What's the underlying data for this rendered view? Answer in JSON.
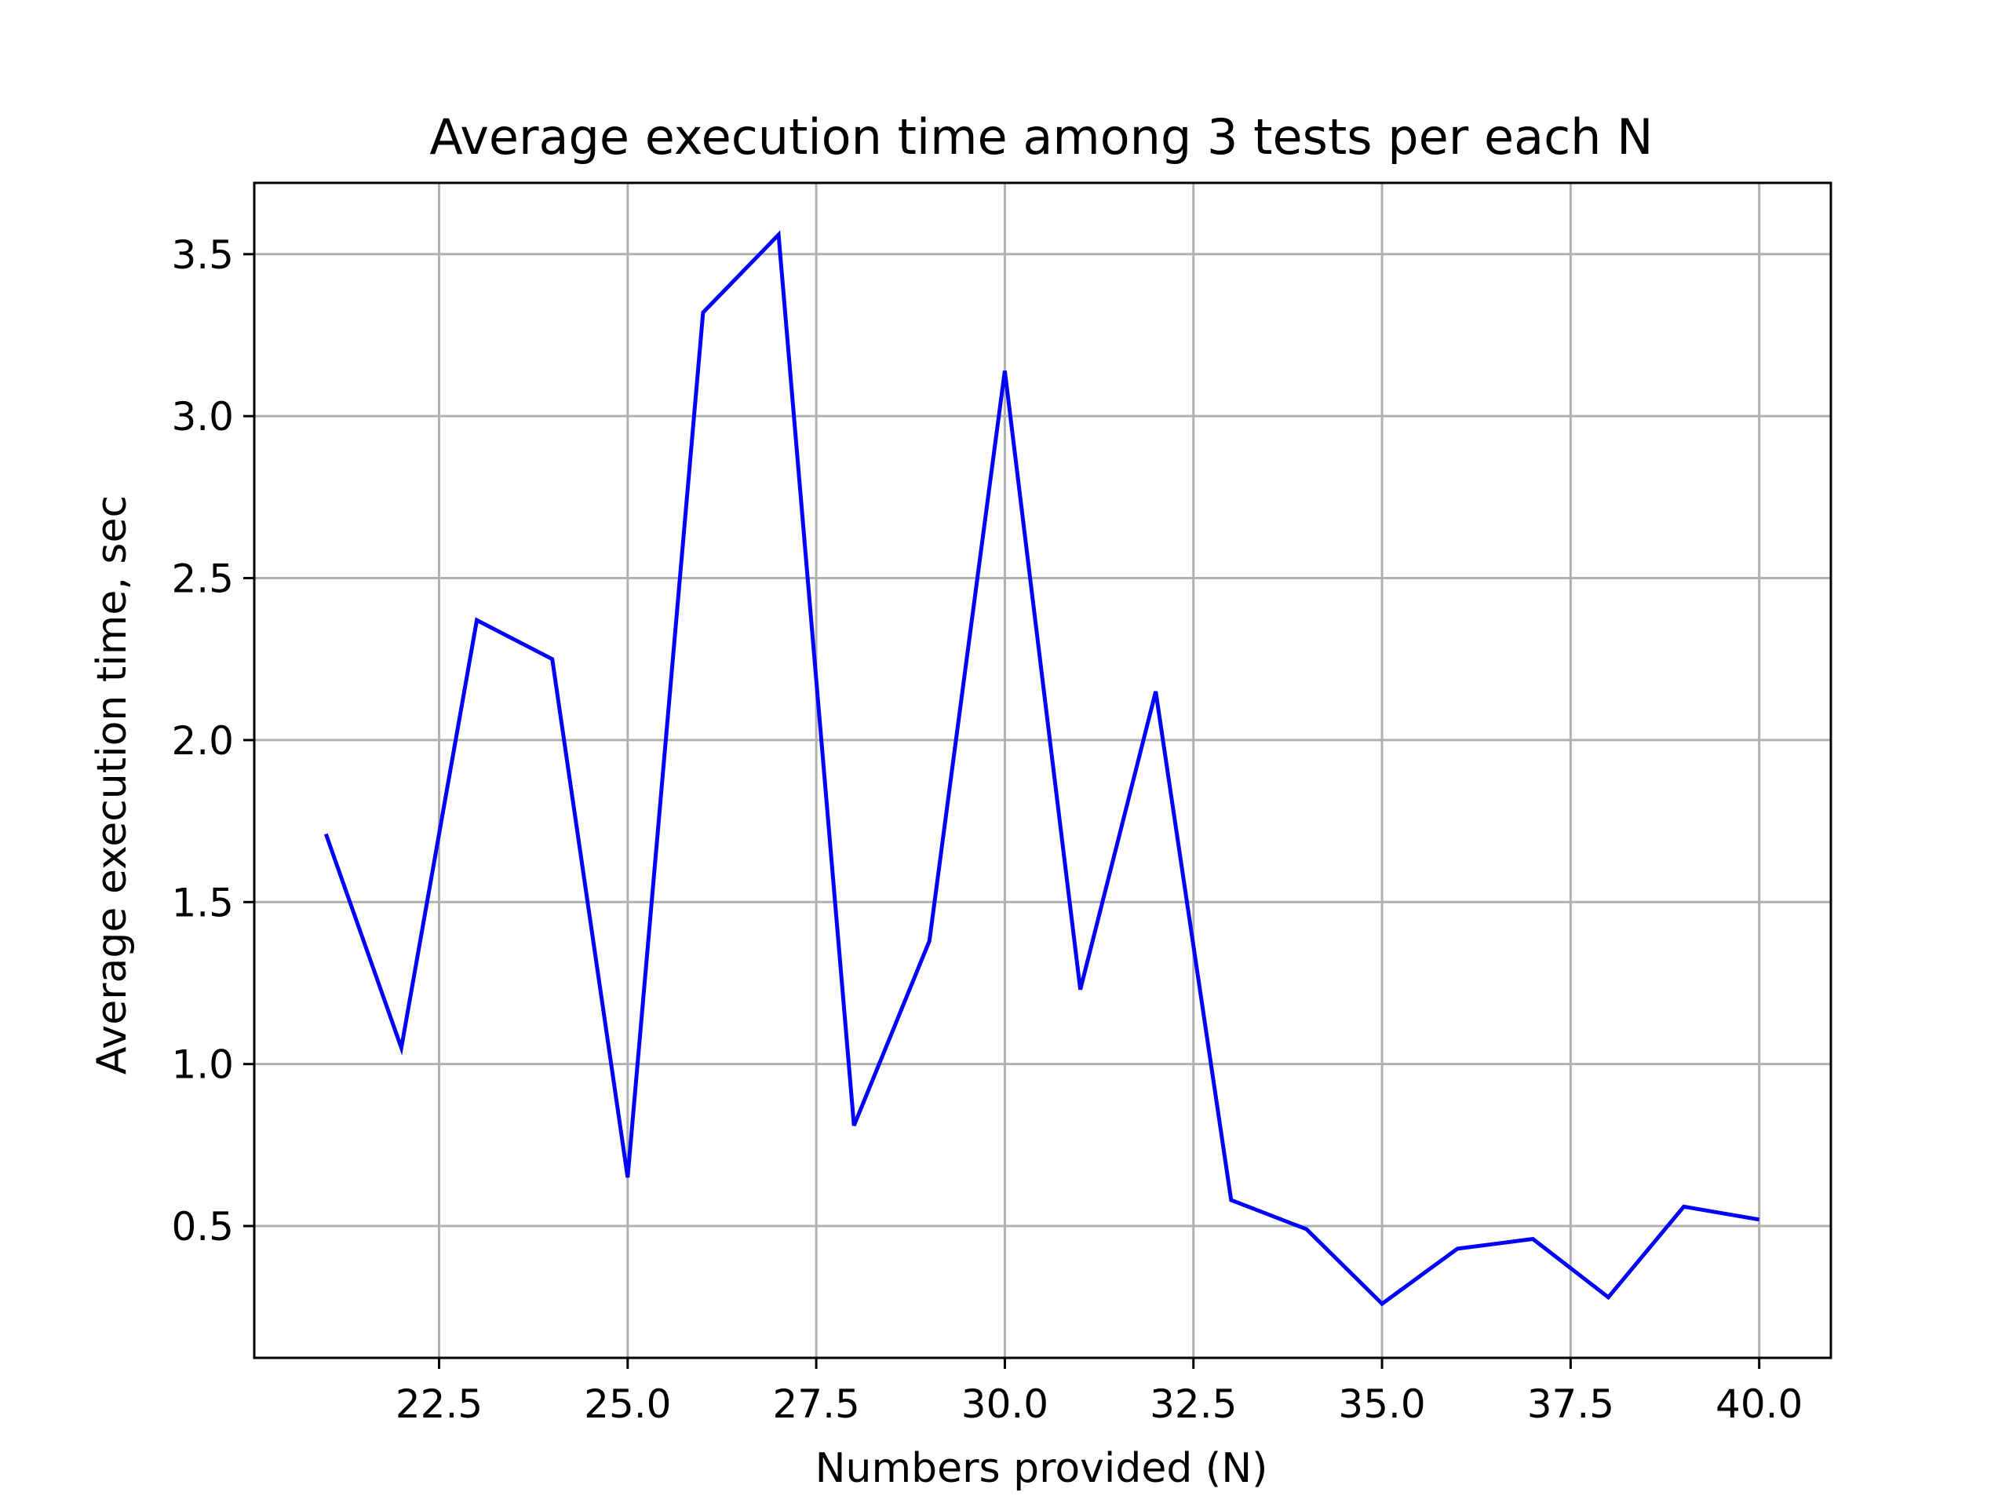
{
  "chart_data": {
    "type": "line",
    "title": "Average execution time among 3 tests per each N",
    "xlabel": "Numbers provided (N)",
    "ylabel": "Average execution time, sec",
    "xlim": [
      20.05,
      40.95
    ],
    "ylim": [
      0.093,
      3.72
    ],
    "grid": true,
    "x_ticks": [
      22.5,
      25.0,
      27.5,
      30.0,
      32.5,
      35.0,
      37.5,
      40.0
    ],
    "x_tick_labels": [
      "22.5",
      "25.0",
      "27.5",
      "30.0",
      "32.5",
      "35.0",
      "37.5",
      "40.0"
    ],
    "y_ticks": [
      0.5,
      1.0,
      1.5,
      2.0,
      2.5,
      3.0,
      3.5
    ],
    "y_tick_labels": [
      "0.5",
      "1.0",
      "1.5",
      "2.0",
      "2.5",
      "3.0",
      "3.5"
    ],
    "series": [
      {
        "color": "#0000ff",
        "x": [
          21,
          22,
          23,
          24,
          25,
          26,
          27,
          28,
          29,
          30,
          31,
          32,
          33,
          34,
          35,
          36,
          37,
          38,
          39,
          40
        ],
        "y": [
          1.71,
          1.05,
          2.37,
          2.25,
          0.65,
          3.32,
          3.56,
          0.81,
          1.38,
          3.14,
          1.23,
          2.15,
          0.58,
          0.49,
          0.26,
          0.43,
          0.46,
          0.28,
          0.56,
          0.52
        ]
      }
    ]
  }
}
